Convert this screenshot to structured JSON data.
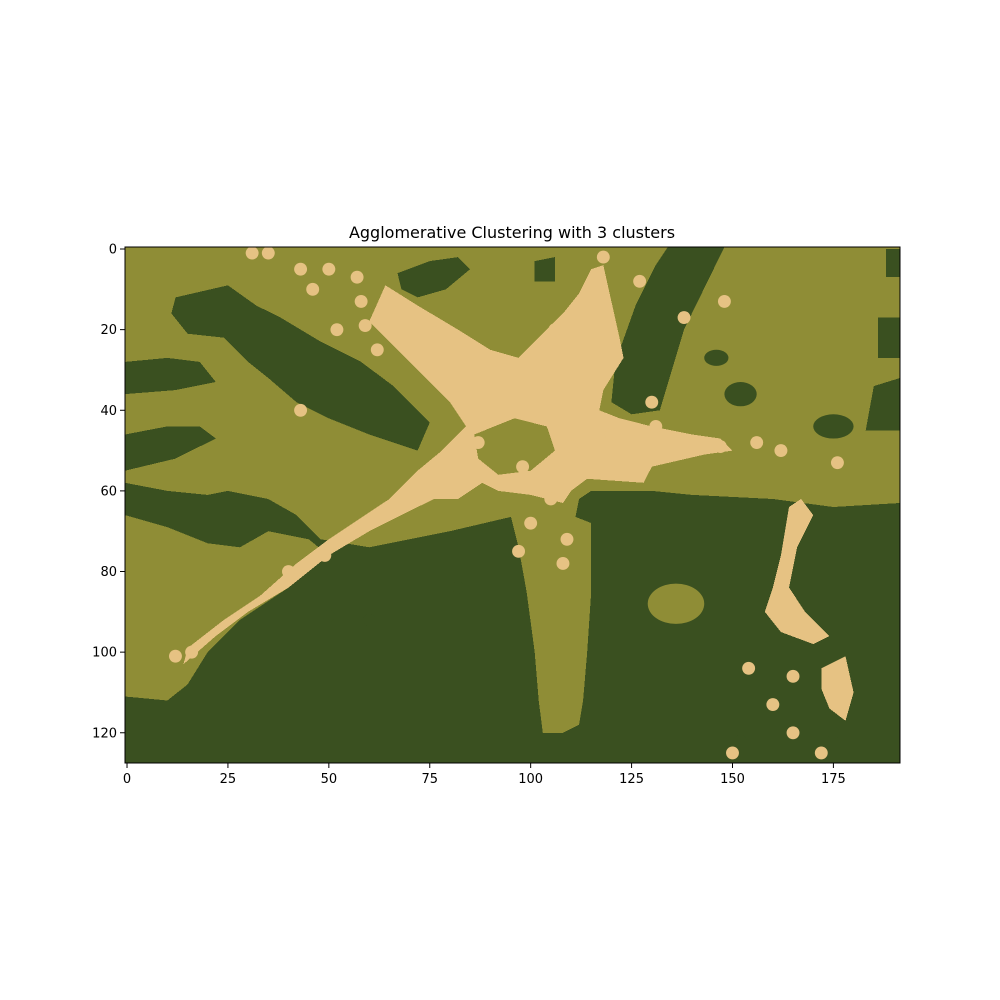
{
  "chart_data": {
    "type": "heatmap",
    "title": "Agglomerative Clustering with 3 clusters",
    "xlabel": "",
    "ylabel": "",
    "image_shape": {
      "rows": 128,
      "cols": 192
    },
    "xlim": [
      -0.5,
      191.5
    ],
    "ylim": [
      127.5,
      -0.5
    ],
    "y_axis_inverted": true,
    "grid": false,
    "x_ticks": [
      0,
      25,
      50,
      75,
      100,
      125,
      150,
      175
    ],
    "y_ticks": [
      0,
      20,
      40,
      60,
      80,
      100,
      120
    ],
    "cluster_count": 3,
    "cluster_colors": [
      "#3a5020",
      "#8f8d36",
      "#e6c283"
    ],
    "regions": {
      "background_cluster": 0,
      "upper_region_cluster": 1,
      "starfish_cluster": 2,
      "lower_left_band_cluster": 1,
      "lower_right_patch_cluster": 1
    }
  }
}
